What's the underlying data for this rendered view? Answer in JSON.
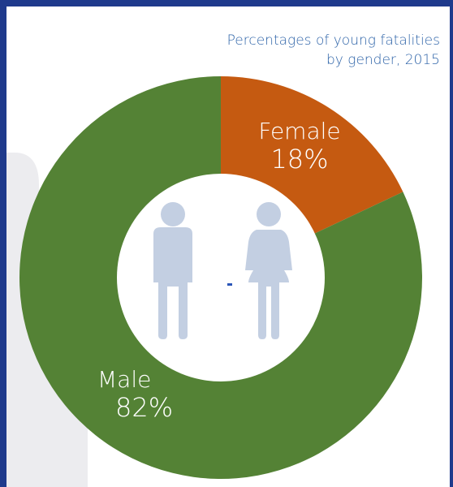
{
  "chart_data": {
    "type": "pie",
    "variant": "donut",
    "title": "Percentages of young fatalities by gender, 2015",
    "title_lines": [
      "Percentages of young fatalities",
      "by gender, 2015"
    ],
    "categories": [
      "Female",
      "Male"
    ],
    "values": [
      18,
      82
    ],
    "unit": "%",
    "labels": {
      "female": {
        "name": "Female",
        "value": "18%"
      },
      "male": {
        "name": "Male",
        "value": "82%"
      }
    },
    "colors": {
      "female": "#c55a11",
      "male": "#548235",
      "icons": "#c3cfe2",
      "background": "#ffffff",
      "border": "#1f3a8c"
    },
    "legend": "none",
    "icons": [
      "male-figure-icon",
      "female-figure-icon"
    ]
  }
}
